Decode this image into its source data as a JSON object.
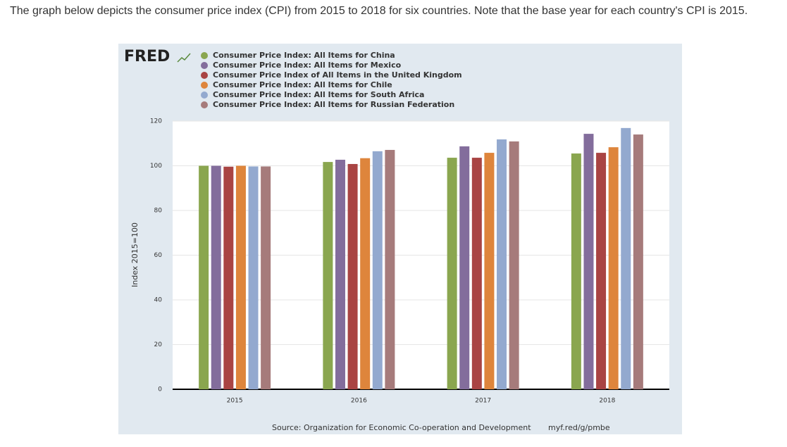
{
  "intro": "The graph below depicts the consumer price index (CPI) from 2015 to 2018 for six countries. Note that the base year for each country's CPI is 2015.",
  "chart_data": {
    "type": "bar",
    "logo": "FRED",
    "y_label": "Index 2015=100",
    "categories": [
      "2015",
      "2016",
      "2017",
      "2018"
    ],
    "series": [
      {
        "name": "Consumer Price Index: All Items for China",
        "color": "#8aa64f",
        "values": [
          100,
          101.7,
          103.6,
          105.5
        ]
      },
      {
        "name": "Consumer Price Index: All Items for Mexico",
        "color": "#836d9c",
        "values": [
          100,
          102.7,
          108.7,
          114.3
        ]
      },
      {
        "name": "Consumer Price Index of All Items in the United Kingdom",
        "color": "#a94443",
        "values": [
          99.6,
          100.8,
          103.6,
          105.8
        ]
      },
      {
        "name": "Consumer Price Index: All Items for Chile",
        "color": "#de853c",
        "values": [
          100,
          103.4,
          105.8,
          108.3
        ]
      },
      {
        "name": "Consumer Price Index: All Items for South Africa",
        "color": "#93a9cf",
        "values": [
          99.7,
          106.5,
          111.8,
          116.9
        ]
      },
      {
        "name": "Consumer Price Index: All Items for Russian Federation",
        "color": "#a67b7b",
        "values": [
          99.7,
          107.1,
          110.9,
          114
        ]
      }
    ],
    "ylim": [
      0,
      120
    ],
    "yticks": [
      0,
      20,
      40,
      60,
      80,
      100,
      120
    ],
    "grid": true,
    "source": "Source: Organization for Economic Co-operation and Development",
    "short_url": "myf.red/g/pmbe"
  }
}
